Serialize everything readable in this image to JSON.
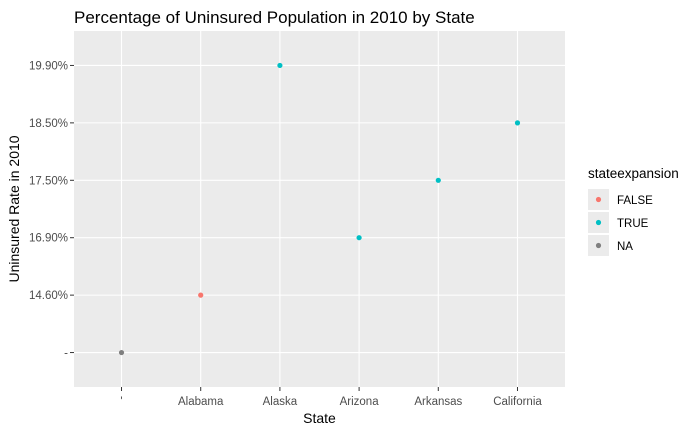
{
  "chart_data": {
    "type": "scatter",
    "title": "Percentage of Uninsured Population in 2010 by State",
    "xlabel": "State",
    "ylabel": "Uninsured Rate in 2010",
    "categories": [
      "",
      "Alabama",
      "Alaska",
      "Arizona",
      "Arkansas",
      "California"
    ],
    "y_levels": [
      "",
      "14.60%",
      "16.90%",
      "17.50%",
      "18.50%",
      "19.90%"
    ],
    "points": [
      {
        "x": "",
        "y": "",
        "group": "NA"
      },
      {
        "x": "Alabama",
        "y": "14.60%",
        "group": "FALSE"
      },
      {
        "x": "Alaska",
        "y": "19.90%",
        "group": "TRUE"
      },
      {
        "x": "Arizona",
        "y": "16.90%",
        "group": "TRUE"
      },
      {
        "x": "Arkansas",
        "y": "17.50%",
        "group": "TRUE"
      },
      {
        "x": "California",
        "y": "18.50%",
        "group": "TRUE"
      }
    ],
    "grid": true,
    "panel_color": "#ebebeb",
    "legend": {
      "title": "stateexpansion",
      "position": "right",
      "entries": [
        {
          "label": "FALSE",
          "color": "#f8766d"
        },
        {
          "label": "TRUE",
          "color": "#00bfc4"
        },
        {
          "label": "NA",
          "color": "#7f7f7f"
        }
      ]
    }
  }
}
